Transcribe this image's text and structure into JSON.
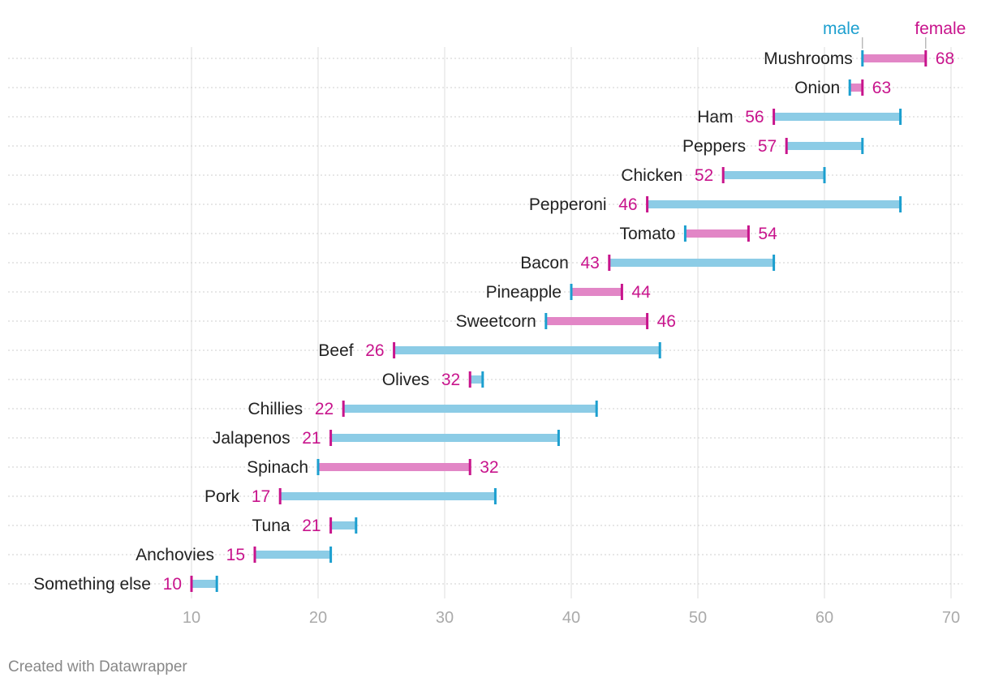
{
  "chart_data": {
    "type": "range",
    "xlim": [
      10,
      70
    ],
    "xticks": [
      "10",
      "20",
      "30",
      "40",
      "50",
      "60",
      "70"
    ],
    "legend": {
      "male": "male",
      "female": "female",
      "placement": "top-right"
    },
    "colors": {
      "male": "#1c9fcf",
      "female": "#c8148c",
      "bar_male_higher": "#8ccce6",
      "bar_female_higher": "#e286c6",
      "grid": "#dddddd",
      "label": "#222222",
      "tick": "#aaaaaa"
    },
    "categories": [
      "Mushrooms",
      "Onion",
      "Ham",
      "Peppers",
      "Chicken",
      "Pepperoni",
      "Tomato",
      "Bacon",
      "Pineapple",
      "Sweetcorn",
      "Beef",
      "Olives",
      "Chillies",
      "Jalapenos",
      "Spinach",
      "Pork",
      "Tuna",
      "Anchovies",
      "Something else"
    ],
    "series": [
      {
        "name": "male",
        "values": [
          63,
          62,
          66,
          63,
          60,
          66,
          49,
          56,
          40,
          38,
          47,
          33,
          42,
          39,
          20,
          34,
          23,
          21,
          12
        ]
      },
      {
        "name": "female",
        "values": [
          68,
          63,
          56,
          57,
          52,
          46,
          54,
          43,
          44,
          46,
          26,
          32,
          22,
          21,
          32,
          17,
          21,
          15,
          10
        ]
      }
    ],
    "grid": true
  },
  "footer": "Created with Datawrapper"
}
